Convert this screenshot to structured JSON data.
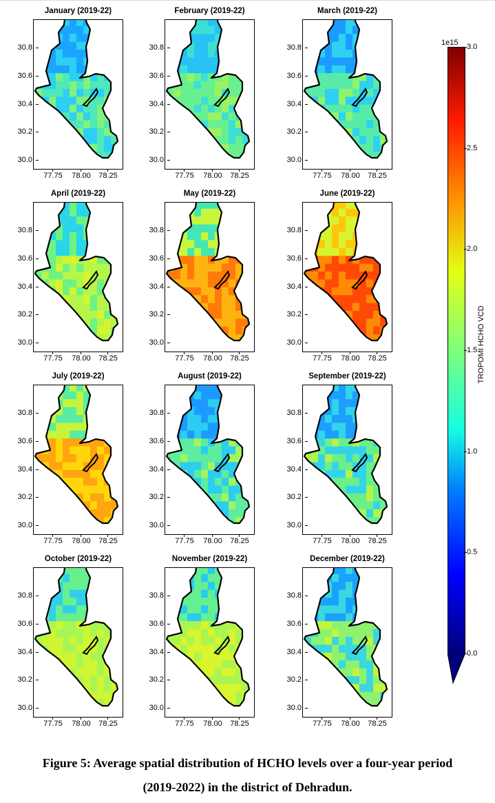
{
  "panels": [
    {
      "title": "January (2019-22)",
      "palette": [
        "#1aa6ff",
        "#2dd0f2",
        "#4fe8b8",
        "#7ff27f"
      ]
    },
    {
      "title": "February (2019-22)",
      "palette": [
        "#27c3f4",
        "#3ddfd5",
        "#68f090",
        "#9af362"
      ]
    },
    {
      "title": "March (2019-22)",
      "palette": [
        "#1c9cff",
        "#2fd1f0",
        "#58eba8",
        "#8df46d"
      ]
    },
    {
      "title": "April (2019-22)",
      "palette": [
        "#2bd5e8",
        "#6ef283",
        "#b4f64a",
        "#d4f52f"
      ]
    },
    {
      "title": "May (2019-22)",
      "palette": [
        "#46e6b4",
        "#c8f63c",
        "#ffb311",
        "#ff7a09"
      ]
    },
    {
      "title": "June (2019-22)",
      "palette": [
        "#d6f52f",
        "#ffc70b",
        "#ff8a06",
        "#ff4a05"
      ]
    },
    {
      "title": "July (2019-22)",
      "palette": [
        "#58eca4",
        "#c6f43d",
        "#ffd60a",
        "#ffa510"
      ]
    },
    {
      "title": "August (2019-22)",
      "palette": [
        "#1d9aff",
        "#2bcdf1",
        "#5deca0",
        "#a3f55a"
      ]
    },
    {
      "title": "September (2019-22)",
      "palette": [
        "#1c9fff",
        "#33d4ea",
        "#6bf089",
        "#b3f44b"
      ]
    },
    {
      "title": "October (2019-22)",
      "palette": [
        "#2fd0ec",
        "#67f08d",
        "#a8f653",
        "#d0f532"
      ]
    },
    {
      "title": "November (2019-22)",
      "palette": [
        "#29cbf0",
        "#64ef90",
        "#aaf551",
        "#d8f52d"
      ]
    },
    {
      "title": "December (2019-22)",
      "palette": [
        "#1aa2ff",
        "#3ad7e0",
        "#8df270",
        "#c4f43c"
      ]
    }
  ],
  "axes": {
    "yticks": [
      "30.8",
      "30.6",
      "30.4",
      "30.2",
      "30.0"
    ],
    "xticks": [
      "77.75",
      "78.00",
      "78.25"
    ]
  },
  "colorbar": {
    "label": "TROPOMI HCHO VCD",
    "exponent": "1e15",
    "ticks": [
      "3.0",
      "2.5",
      "2.0",
      "1.5",
      "1.0",
      "0.5",
      "0.0"
    ]
  },
  "caption": {
    "line1": "Figure 5: Average spatial distribution of HCHO levels over a four-year period",
    "line2": "(2019-2022) in the district of Dehradun."
  }
}
